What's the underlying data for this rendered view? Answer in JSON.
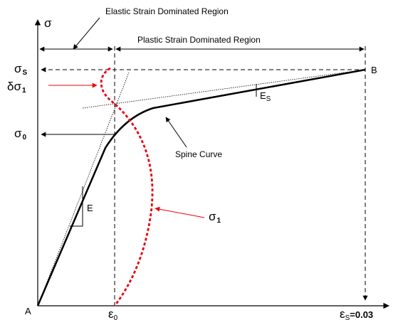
{
  "labels": {
    "elastic_region": "Elastic Strain Dominated Region",
    "plastic_region": "Plastic Strain Dominated Region",
    "sigma_axis": "σ",
    "sigma_s": "σ",
    "sigma_s_sub": "S",
    "delta_sigma1": "δσ",
    "delta_sigma1_sub": "1",
    "sigma0": "σ",
    "sigma0_sub": "0",
    "point_A": "A",
    "point_B": "B",
    "E": "E",
    "Es": "E",
    "Es_sub": "S",
    "spine_curve": "Spine Curve",
    "sigma1": "σ",
    "sigma1_sub": "1",
    "eps0": "ε",
    "eps0_sub": "0",
    "epss": "ε",
    "epss_sub": "S",
    "epss_value": "=0.03"
  },
  "colors": {
    "line": "#000000",
    "red": "#e8000b"
  }
}
